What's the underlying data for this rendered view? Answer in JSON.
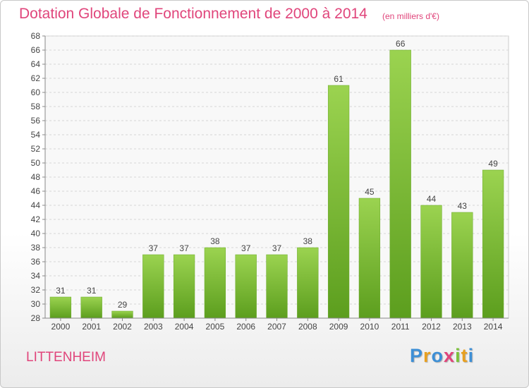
{
  "chart_data": {
    "type": "bar",
    "title": "Dotation Globale de Fonctionnement de 2000 à 2014",
    "subtitle": "(en milliers d'€)",
    "categories": [
      "2000",
      "2001",
      "2002",
      "2003",
      "2004",
      "2005",
      "2006",
      "2007",
      "2008",
      "2009",
      "2010",
      "2011",
      "2012",
      "2013",
      "2014"
    ],
    "values": [
      31,
      31,
      29,
      37,
      37,
      38,
      37,
      37,
      38,
      61,
      45,
      66,
      44,
      43,
      49
    ],
    "ylim": [
      28,
      68
    ],
    "ytick_step": 2,
    "grid": true,
    "bar_color": "#7cc23a"
  },
  "commune": "LITTENHEIM",
  "logo": {
    "text": "Proxiti",
    "letters": [
      {
        "char": "P",
        "color": "#3d8fd6"
      },
      {
        "char": "r",
        "color": "#e8a020"
      },
      {
        "char": "o",
        "color": "#3d8fd6"
      },
      {
        "char": "x",
        "color": "#e0457b"
      },
      {
        "char": "i",
        "color": "#7cc23a"
      },
      {
        "char": "t",
        "color": "#e8a020"
      },
      {
        "char": "i",
        "color": "#3d8fd6"
      }
    ]
  }
}
